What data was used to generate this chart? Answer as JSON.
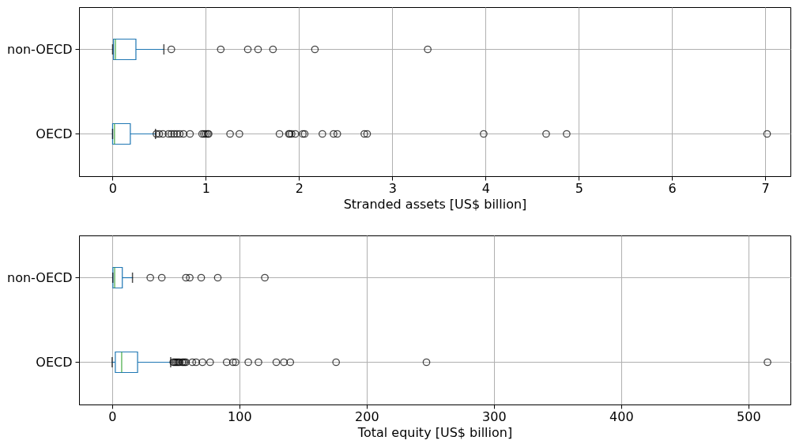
{
  "chart_data": [
    {
      "type": "box",
      "orientation": "horizontal",
      "xlabel": "Stranded assets [US$ billion]",
      "categories": [
        "non-OECD",
        "OECD"
      ],
      "xlim": [
        -0.36,
        7.27
      ],
      "xticks": [
        0,
        1,
        2,
        3,
        4,
        5,
        6,
        7
      ],
      "grid": true,
      "series": [
        {
          "color": "#1f77b4",
          "boxes": [
            {
              "low": 0.0,
              "q1": 0.01,
              "median": 0.03,
              "q3": 0.25,
              "high": 0.55,
              "outliers": [
                0.63,
                1.16,
                1.45,
                1.56,
                1.72,
                2.17,
                3.38
              ]
            },
            {
              "low": 0.0,
              "q1": 0.0,
              "median": 0.02,
              "q3": 0.19,
              "high": 0.46,
              "outliers": [
                0.47,
                0.5,
                0.54,
                0.6,
                0.63,
                0.66,
                0.69,
                0.72,
                0.76,
                0.83,
                0.96,
                0.98,
                1.0,
                1.02,
                1.03,
                1.26,
                1.36,
                1.79,
                1.89,
                1.9,
                1.92,
                1.96,
                2.04,
                2.06,
                2.25,
                2.37,
                2.41,
                2.7,
                2.73,
                3.98,
                4.65,
                4.87,
                7.02
              ]
            }
          ]
        }
      ]
    },
    {
      "type": "box",
      "orientation": "horizontal",
      "xlabel": "Total equity [US$ billion]",
      "categories": [
        "non-OECD",
        "OECD"
      ],
      "xlim": [
        -26,
        533
      ],
      "xticks": [
        0,
        100,
        200,
        300,
        400,
        500
      ],
      "grid": true,
      "series": [
        {
          "color": "#1f77b4",
          "boxes": [
            {
              "low": 0.5,
              "q1": 0.6,
              "median": 2,
              "q3": 8,
              "high": 16,
              "outliers": [
                30,
                39,
                58,
                61,
                70,
                83,
                120
              ]
            },
            {
              "low": 0,
              "q1": 2.5,
              "median": 7.5,
              "q3": 20,
              "high": 46,
              "outliers": [
                48,
                49,
                50,
                51,
                52,
                53,
                55,
                56,
                57,
                58,
                63,
                66,
                71,
                77,
                90,
                95,
                97,
                107,
                115,
                129,
                135,
                140,
                176,
                247,
                515
              ]
            }
          ]
        }
      ]
    }
  ]
}
